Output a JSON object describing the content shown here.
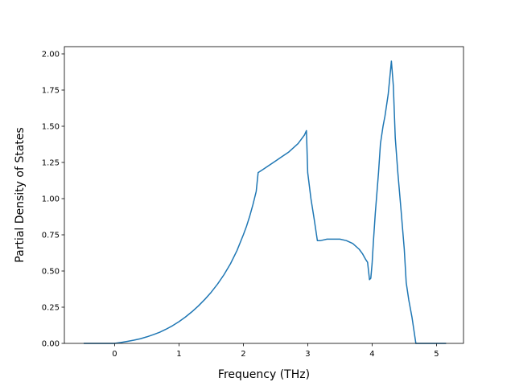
{
  "chart_data": {
    "type": "line",
    "title": "",
    "xlabel": "Frequency (THz)",
    "ylabel": "Partial Density of States",
    "xlim": [
      -0.78,
      5.42
    ],
    "ylim": [
      0.0,
      2.05
    ],
    "grid": false,
    "legend": "none",
    "x_ticks": [
      0,
      1,
      2,
      3,
      4,
      5
    ],
    "x_tick_labels": [
      "0",
      "1",
      "2",
      "3",
      "4",
      "5"
    ],
    "y_ticks": [
      0.0,
      0.25,
      0.5,
      0.75,
      1.0,
      1.25,
      1.5,
      1.75,
      2.0
    ],
    "y_tick_labels": [
      "0.00",
      "0.25",
      "0.50",
      "0.75",
      "1.00",
      "1.25",
      "1.50",
      "1.75",
      "2.00"
    ],
    "series": [
      {
        "color": "#1f77b4",
        "x": [
          -0.48,
          -0.2,
          0.0,
          0.1,
          0.2,
          0.3,
          0.4,
          0.5,
          0.6,
          0.7,
          0.8,
          0.9,
          1.0,
          1.1,
          1.2,
          1.3,
          1.4,
          1.5,
          1.6,
          1.7,
          1.8,
          1.9,
          2.0,
          2.05,
          2.1,
          2.15,
          2.2,
          2.23,
          2.3,
          2.4,
          2.5,
          2.6,
          2.7,
          2.8,
          2.85,
          2.9,
          2.95,
          2.98,
          3.0,
          3.05,
          3.1,
          3.15,
          3.2,
          3.3,
          3.4,
          3.5,
          3.6,
          3.7,
          3.8,
          3.85,
          3.9,
          3.93,
          3.96,
          3.98,
          4.0,
          4.02,
          4.05,
          4.1,
          4.13,
          4.17,
          4.2,
          4.25,
          4.3,
          4.33,
          4.36,
          4.4,
          4.45,
          4.5,
          4.53,
          4.57,
          4.62,
          4.68,
          4.75,
          4.9,
          5.15
        ],
        "y": [
          0.0,
          0.0,
          0.0,
          0.006,
          0.014,
          0.022,
          0.032,
          0.045,
          0.06,
          0.077,
          0.098,
          0.122,
          0.15,
          0.182,
          0.218,
          0.258,
          0.303,
          0.353,
          0.41,
          0.475,
          0.55,
          0.64,
          0.75,
          0.81,
          0.88,
          0.96,
          1.05,
          1.18,
          1.2,
          1.23,
          1.26,
          1.29,
          1.32,
          1.36,
          1.38,
          1.41,
          1.44,
          1.47,
          1.18,
          1.0,
          0.86,
          0.71,
          0.71,
          0.72,
          0.72,
          0.72,
          0.71,
          0.69,
          0.65,
          0.62,
          0.58,
          0.56,
          0.44,
          0.45,
          0.55,
          0.7,
          0.9,
          1.18,
          1.38,
          1.5,
          1.57,
          1.72,
          1.95,
          1.78,
          1.42,
          1.18,
          0.92,
          0.65,
          0.42,
          0.3,
          0.18,
          0.0,
          0.0,
          0.0,
          0.0
        ]
      }
    ]
  }
}
